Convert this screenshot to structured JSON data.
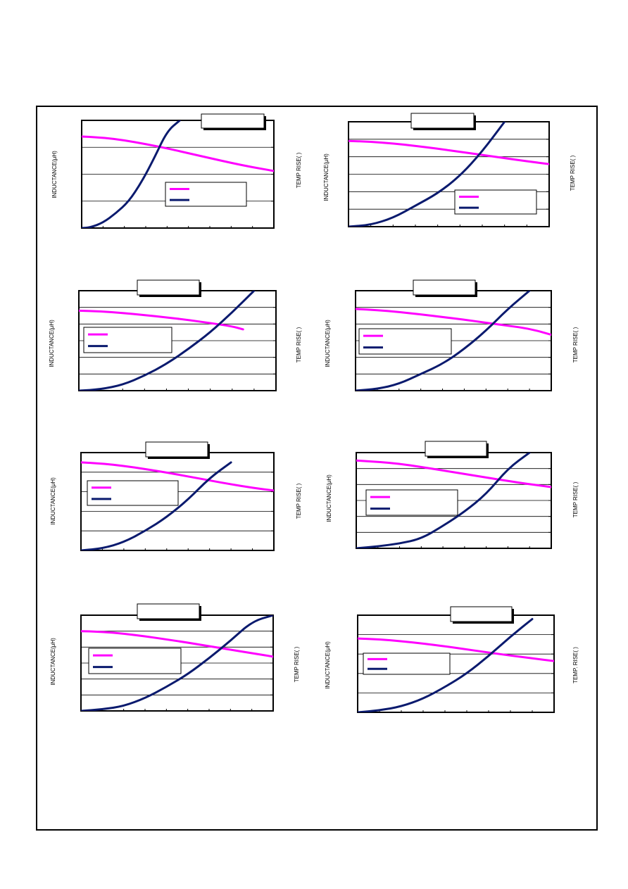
{
  "page": {
    "frame_color": "#000000"
  },
  "colors": {
    "inductance": "#ff00ff",
    "temp_rise": "#0a1a6e",
    "grid": "#000000"
  },
  "labels": {
    "inductance": "INDUCTANCE(μH)",
    "temp_rise": "TEMP RISE(  )",
    "temp_rise_alt": "TEMP. RISE(  )"
  },
  "chart_data": [
    {
      "type": "line",
      "x_range": [
        0,
        9
      ],
      "y_range": [
        0,
        4
      ],
      "series": [
        {
          "key": "inductance",
          "x": [
            0,
            1,
            2,
            3,
            4,
            5,
            6,
            7,
            8,
            9
          ],
          "y": [
            3.4,
            3.36,
            3.26,
            3.12,
            2.96,
            2.78,
            2.6,
            2.42,
            2.26,
            2.12
          ]
        },
        {
          "key": "temp_rise",
          "x": [
            0,
            0.4,
            1,
            1.6,
            2.2,
            2.8,
            3.4,
            4.0,
            4.6
          ],
          "y": [
            0,
            0.02,
            0.2,
            0.55,
            0.98,
            1.7,
            2.6,
            3.6,
            4.0
          ]
        }
      ]
    },
    {
      "type": "line",
      "x_range": [
        0,
        9
      ],
      "y_range": [
        0,
        6
      ],
      "series": [
        {
          "key": "inductance",
          "x": [
            0,
            1,
            2,
            3,
            4,
            5,
            6,
            7,
            8,
            9
          ],
          "y": [
            4.9,
            4.86,
            4.76,
            4.62,
            4.46,
            4.28,
            4.1,
            3.92,
            3.74,
            3.58
          ]
        },
        {
          "key": "temp_rise",
          "x": [
            0,
            1,
            2,
            3,
            4,
            5,
            6,
            7
          ],
          "y": [
            0,
            0.1,
            0.5,
            1.2,
            1.9,
            2.9,
            4.3,
            6.0
          ]
        }
      ]
    },
    {
      "type": "line",
      "x_range": [
        0,
        9
      ],
      "y_range": [
        0,
        6
      ],
      "series": [
        {
          "key": "inductance",
          "x": [
            0,
            1,
            2,
            3,
            4,
            5,
            6,
            7,
            7.5
          ],
          "y": [
            4.8,
            4.76,
            4.66,
            4.54,
            4.4,
            4.24,
            4.06,
            3.86,
            3.68
          ]
        },
        {
          "key": "temp_rise",
          "x": [
            0,
            1,
            2,
            3,
            4,
            5,
            6,
            7,
            8
          ],
          "y": [
            0,
            0.08,
            0.35,
            0.9,
            1.6,
            2.5,
            3.5,
            4.7,
            6.0
          ]
        }
      ]
    },
    {
      "type": "line",
      "x_range": [
        0,
        9
      ],
      "y_range": [
        0,
        6
      ],
      "series": [
        {
          "key": "inductance",
          "x": [
            0,
            1,
            2,
            3,
            4,
            5,
            6,
            7,
            8,
            9
          ],
          "y": [
            4.9,
            4.84,
            4.72,
            4.58,
            4.42,
            4.26,
            4.08,
            3.9,
            3.72,
            3.36
          ]
        },
        {
          "key": "temp_rise",
          "x": [
            0,
            1,
            2,
            3,
            4,
            5,
            6,
            7,
            8
          ],
          "y": [
            0,
            0.1,
            0.4,
            1.0,
            1.6,
            2.5,
            3.6,
            4.9,
            6.0
          ]
        }
      ]
    },
    {
      "type": "line",
      "x_range": [
        0,
        9
      ],
      "y_range": [
        0,
        5
      ],
      "series": [
        {
          "key": "inductance",
          "x": [
            0,
            1,
            2,
            3,
            4,
            5,
            6,
            7,
            8,
            9
          ],
          "y": [
            4.5,
            4.44,
            4.32,
            4.16,
            3.98,
            3.78,
            3.58,
            3.38,
            3.2,
            3.06
          ]
        },
        {
          "key": "temp_rise",
          "x": [
            0,
            1,
            2,
            3,
            4,
            5,
            6,
            7
          ],
          "y": [
            0,
            0.1,
            0.42,
            1.0,
            1.7,
            2.6,
            3.7,
            4.5
          ]
        }
      ]
    },
    {
      "type": "line",
      "x_range": [
        0,
        9
      ],
      "y_range": [
        0,
        6
      ],
      "series": [
        {
          "key": "inductance",
          "x": [
            0,
            1,
            2,
            3,
            4,
            5,
            6,
            7,
            8,
            9
          ],
          "y": [
            5.5,
            5.42,
            5.3,
            5.1,
            4.88,
            4.66,
            4.44,
            4.22,
            4.02,
            3.84
          ]
        },
        {
          "key": "temp_rise",
          "x": [
            0,
            1,
            2,
            3,
            4,
            5,
            6,
            7,
            8
          ],
          "y": [
            0,
            0.12,
            0.3,
            0.6,
            1.4,
            2.3,
            3.4,
            5.0,
            6.0
          ]
        }
      ]
    },
    {
      "type": "line",
      "x_range": [
        0,
        9
      ],
      "y_range": [
        0,
        6
      ],
      "series": [
        {
          "key": "inductance",
          "x": [
            0,
            1,
            2,
            3,
            4,
            5,
            6,
            7,
            8,
            9
          ],
          "y": [
            5.0,
            4.96,
            4.84,
            4.68,
            4.48,
            4.28,
            4.06,
            3.84,
            3.62,
            3.4
          ]
        },
        {
          "key": "temp_rise",
          "x": [
            0,
            1,
            2,
            3,
            4,
            5,
            6,
            7,
            8,
            9
          ],
          "y": [
            0,
            0.1,
            0.3,
            0.8,
            1.5,
            2.3,
            3.3,
            4.4,
            5.6,
            6.0
          ]
        }
      ]
    },
    {
      "type": "line",
      "x_range": [
        0,
        9
      ],
      "y_range": [
        0,
        5
      ],
      "series": [
        {
          "key": "inductance",
          "x": [
            0,
            1,
            2,
            3,
            4,
            5,
            6,
            7,
            8,
            9
          ],
          "y": [
            3.8,
            3.76,
            3.66,
            3.54,
            3.4,
            3.24,
            3.08,
            2.92,
            2.78,
            2.64
          ]
        },
        {
          "key": "temp_rise",
          "x": [
            0,
            1,
            2,
            3,
            4,
            5,
            6,
            7,
            8
          ],
          "y": [
            0,
            0.1,
            0.3,
            0.7,
            1.3,
            2.0,
            2.9,
            3.9,
            4.8
          ]
        }
      ]
    }
  ]
}
